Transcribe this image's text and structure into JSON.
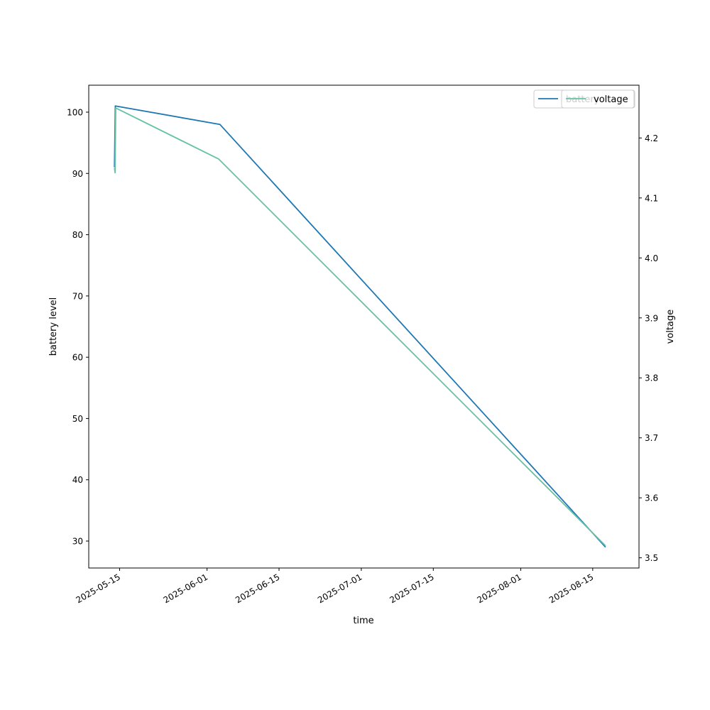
{
  "chart_data": {
    "type": "line",
    "title": "",
    "xlabel": "time",
    "ylabel_left": "battery level",
    "ylabel_right": "voltage",
    "x_range": [
      "2025-05-09",
      "2025-08-24"
    ],
    "y_left_range": [
      25.6,
      104.4
    ],
    "y_right_range": [
      3.483,
      4.288
    ],
    "x_ticks": [
      "2025-05-15",
      "2025-06-01",
      "2025-06-15",
      "2025-07-01",
      "2025-07-15",
      "2025-08-01",
      "2025-08-15"
    ],
    "y_left_ticks": [
      30,
      40,
      50,
      60,
      70,
      80,
      90,
      100
    ],
    "y_right_ticks": [
      3.5,
      3.6,
      3.7,
      3.8,
      3.9,
      4.0,
      4.1,
      4.2
    ],
    "y_right_tick_labels": [
      "3.5",
      "3.6",
      "3.7",
      "3.8",
      "3.9",
      "4.0",
      "4.1",
      "4.2"
    ],
    "grid": false,
    "legend": {
      "placement": "top-right",
      "overlapping": true
    },
    "series": [
      {
        "name": "battery",
        "axis": "left",
        "color": "#1f77b4",
        "points": [
          {
            "x": "2025-05-14T00:00",
            "y": 91
          },
          {
            "x": "2025-05-14T04:00",
            "y": 101
          },
          {
            "x": "2025-06-03T12:00",
            "y": 98
          },
          {
            "x": "2025-08-17T12:00",
            "y": 29
          }
        ]
      },
      {
        "name": "voltage",
        "axis": "right",
        "color": "#66c2a5",
        "points": [
          {
            "x": "2025-05-14T00:00",
            "y": 4.15
          },
          {
            "x": "2025-05-14T03:00",
            "y": 4.142
          },
          {
            "x": "2025-05-14T06:00",
            "y": 4.25
          },
          {
            "x": "2025-06-03T06:00",
            "y": 4.165
          },
          {
            "x": "2025-08-17T12:00",
            "y": 3.52
          }
        ]
      }
    ]
  }
}
